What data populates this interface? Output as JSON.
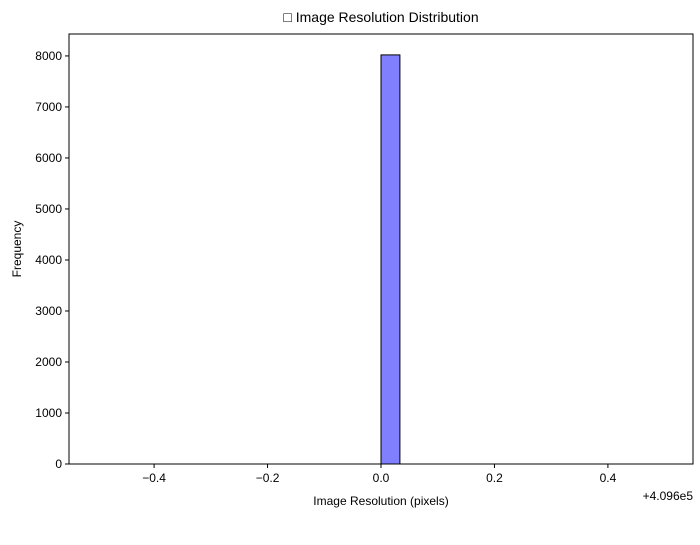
{
  "chart_data": {
    "type": "bar",
    "title": "□ Image Resolution Distribution",
    "xlabel": "Image Resolution (pixels)",
    "ylabel": "Frequency",
    "x_offset_label": "+4.096e5",
    "xlim": [
      -0.55,
      0.55
    ],
    "ylim": [
      0,
      8430
    ],
    "x_ticks": [
      -0.4,
      -0.2,
      0.0,
      0.2,
      0.4
    ],
    "x_tick_labels": [
      "−0.4",
      "−0.2",
      "0.0",
      "0.2",
      "0.4"
    ],
    "y_ticks": [
      0,
      1000,
      2000,
      3000,
      4000,
      5000,
      6000,
      7000,
      8000
    ],
    "y_tick_labels": [
      "0",
      "1000",
      "2000",
      "3000",
      "4000",
      "5000",
      "6000",
      "7000",
      "8000"
    ],
    "bin_range": [
      -0.5,
      0.5
    ],
    "bin_count": 30,
    "bins": [
      {
        "x0": 0.0,
        "x1": 0.0333,
        "count": 8020
      }
    ],
    "bar_color": "#8080ff",
    "bar_edge_color": "#000000",
    "grid": false,
    "legend": "none"
  }
}
